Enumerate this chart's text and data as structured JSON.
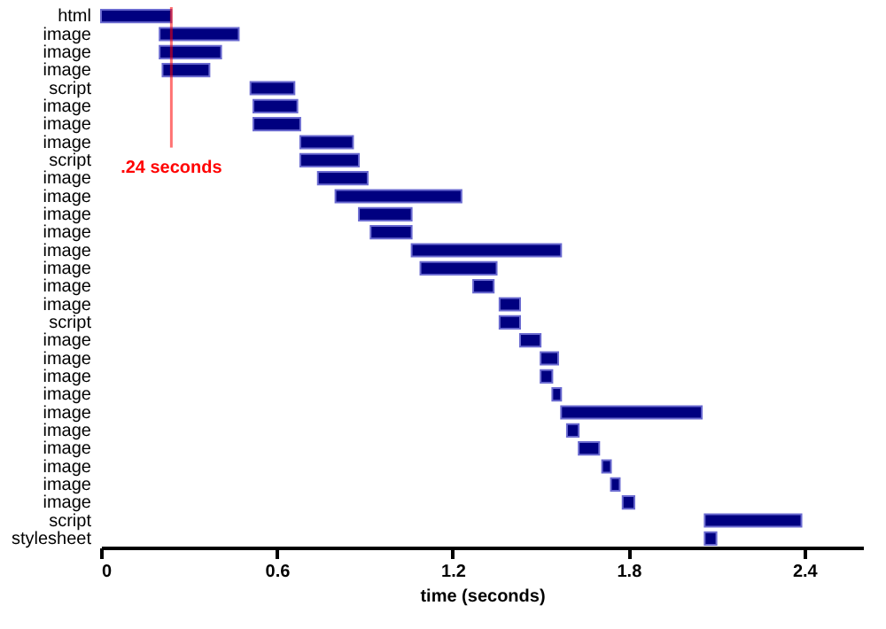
{
  "chart_data": {
    "type": "bar",
    "orientation": "horizontal",
    "categories": [
      "html",
      "image",
      "image",
      "image",
      "script",
      "image",
      "image",
      "image",
      "script",
      "image",
      "image",
      "image",
      "image",
      "image",
      "image",
      "image",
      "image",
      "script",
      "image",
      "image",
      "image",
      "image",
      "image",
      "image",
      "image",
      "image",
      "image",
      "image",
      "script",
      "stylesheet"
    ],
    "base": [
      0,
      0.2,
      0.2,
      0.21,
      0.51,
      0.52,
      0.52,
      0.68,
      0.68,
      0.74,
      0.8,
      0.88,
      0.92,
      1.06,
      1.09,
      1.27,
      1.36,
      1.36,
      1.43,
      1.5,
      1.5,
      1.54,
      1.57,
      1.59,
      1.63,
      1.71,
      1.74,
      1.78,
      2.06,
      2.06
    ],
    "values": [
      0.24,
      0.27,
      0.21,
      0.16,
      0.15,
      0.15,
      0.16,
      0.18,
      0.2,
      0.17,
      0.43,
      0.18,
      0.14,
      0.51,
      0.26,
      0.07,
      0.07,
      0.07,
      0.07,
      0.06,
      0.04,
      0.03,
      0.48,
      0.04,
      0.07,
      0.03,
      0.03,
      0.04,
      0.33,
      0.04
    ],
    "color": "#000080",
    "xlabel": "time (seconds)",
    "xlim": [
      0,
      2.6
    ],
    "xticks": [
      0,
      0.6,
      1.2,
      1.8,
      2.4
    ],
    "grid": false,
    "ref_lines": [
      {
        "axis": "x",
        "value": 0.24,
        "label": ".24 seconds",
        "color": "#ff0000"
      }
    ]
  }
}
